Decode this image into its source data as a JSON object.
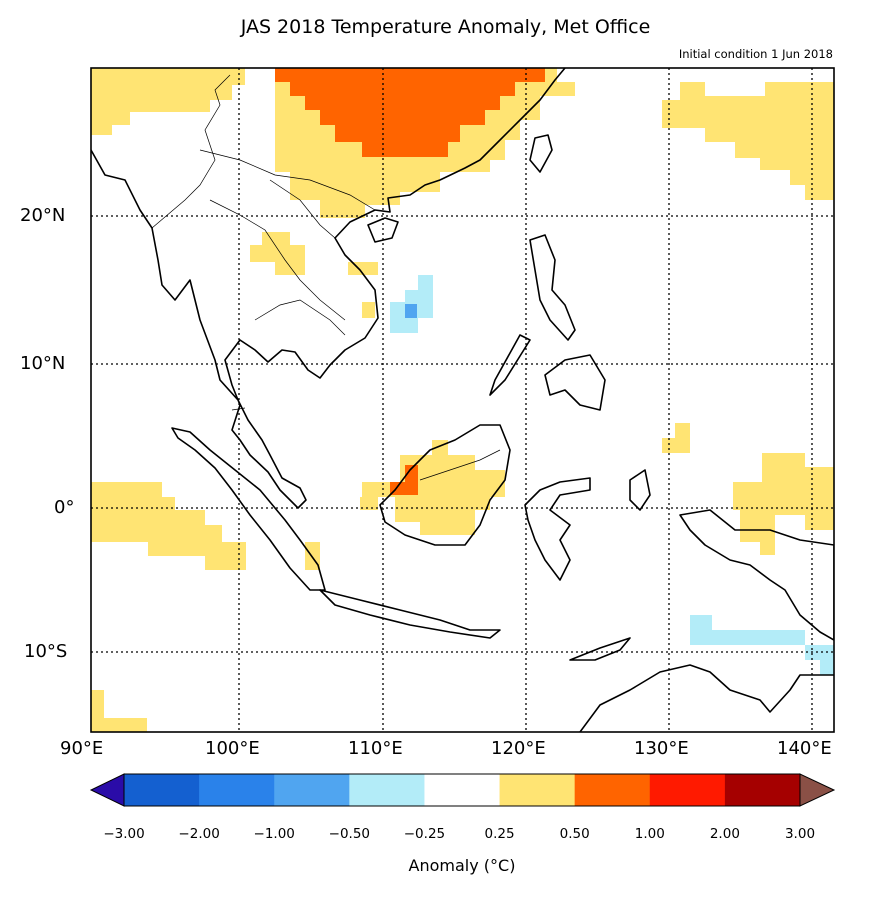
{
  "title": "JAS 2018 Temperature Anomaly, Met Office",
  "subtitle": "Initial condition 1 Jun 2018",
  "lat_labels": [
    "20°N",
    "10°N",
    "0°",
    "10°S"
  ],
  "lon_labels": [
    "90°E",
    "100°E",
    "110°E",
    "120°E",
    "130°E",
    "140°E"
  ],
  "colorbar": {
    "label": "Anomaly (°C)",
    "ticks": [
      "−3.00",
      "−2.00",
      "−1.00",
      "−0.50",
      "−0.25",
      "0.25",
      "0.50",
      "1.00",
      "2.00",
      "3.00"
    ],
    "colors": [
      "#1460d0",
      "#2a82ea",
      "#50a5f0",
      "#b3ecf8",
      "#ffffff",
      "#ffe473",
      "#ff6400",
      "#ff1a00",
      "#a50000"
    ],
    "under_color": "#2a0ca8",
    "over_color": "#8a5046"
  },
  "anomaly_colors": {
    "warm_low": "#ffe473",
    "warm_mid": "#ff6400",
    "cool_low": "#b3ecf8",
    "cool_mid": "#50a5f0"
  }
}
